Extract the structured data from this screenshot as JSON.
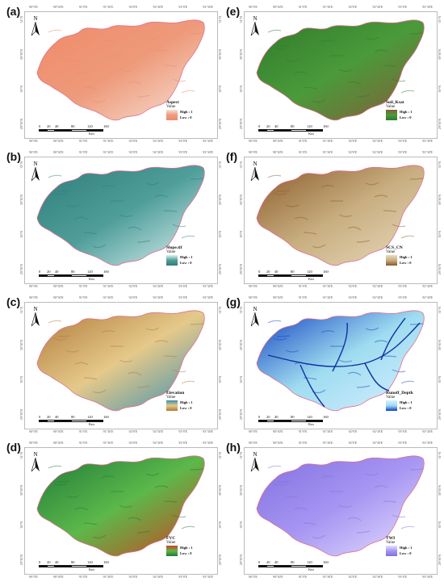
{
  "lon_ticks": [
    "90°0'E",
    "90°30'E",
    "91°0'E",
    "91°30'E",
    "92°0'E",
    "92°30'E",
    "93°0'E",
    "93°30'E"
  ],
  "lat_ticks": [
    "31°N",
    "30°30'N",
    "30°N",
    "29°30'N"
  ],
  "scale": {
    "left": {
      "nums": [
        "0",
        "20",
        "40",
        "80",
        "120",
        "160"
      ],
      "unit": "Km"
    },
    "right": {
      "nums": [
        "0",
        "20",
        "40",
        "80",
        "120",
        "160"
      ],
      "unit": "Km"
    }
  },
  "north": "N",
  "panels": [
    {
      "id": "a",
      "label": "(a)",
      "title": "Aspect",
      "value": "Value",
      "high": "High : 1",
      "low": "Low : 0",
      "c_high": "#f08a6a",
      "c_low": "#f6e3d8",
      "fill": "#ee9a7a",
      "col": 0,
      "row": 0
    },
    {
      "id": "b",
      "label": "(b)",
      "title": "Slope.tif",
      "value": "Value",
      "high": "High : 1",
      "low": "Low : 0",
      "c_high": "#2f7d7a",
      "c_low": "#dff2f2",
      "fill": "#4f9e9a",
      "col": 0,
      "row": 1
    },
    {
      "id": "c",
      "label": "(c)",
      "title": "Elevation",
      "value": "Value",
      "high": "High : 1",
      "low": "Low : 0",
      "c_high": "#b07a3a",
      "c_low": "#3a8fb0",
      "fill": "#e5c98a",
      "col": 0,
      "row": 2
    },
    {
      "id": "d",
      "label": "(d)",
      "title": "FVC",
      "value": "Value",
      "high": "High : 1",
      "low": "Low : 0",
      "c_high": "#1f7a3a",
      "c_low": "#d04020",
      "fill": "#5cb84a",
      "col": 0,
      "row": 3
    },
    {
      "id": "e",
      "label": "(e)",
      "title": "Soil_Ksat",
      "value": "Value",
      "high": "High : 1",
      "low": "Low : 0",
      "c_high": "#2f7a2a",
      "c_low": "#8a5a3a",
      "fill": "#4a9a3a",
      "col": 1,
      "row": 0
    },
    {
      "id": "f",
      "label": "(f)",
      "title": "SCS_CN",
      "value": "Value",
      "high": "High : 1",
      "low": "Low : 0",
      "c_high": "#8a5a2a",
      "c_low": "#e8dcc0",
      "fill": "#c8ae80",
      "col": 1,
      "row": 1
    },
    {
      "id": "g",
      "label": "(g)",
      "title": "Runoff_Depth",
      "value": "Value",
      "high": "High : 1",
      "low": "Low : 0",
      "c_high": "#1040c0",
      "c_low": "#d8f0ff",
      "fill": "#9fdcf0",
      "col": 1,
      "row": 2
    },
    {
      "id": "h",
      "label": "(h)",
      "title": "TWI",
      "value": "Value",
      "high": "High : 1",
      "low": "Low : 0",
      "c_high": "#8070e0",
      "c_low": "#e6e0ff",
      "fill": "#a796f2",
      "col": 1,
      "row": 3
    }
  ]
}
